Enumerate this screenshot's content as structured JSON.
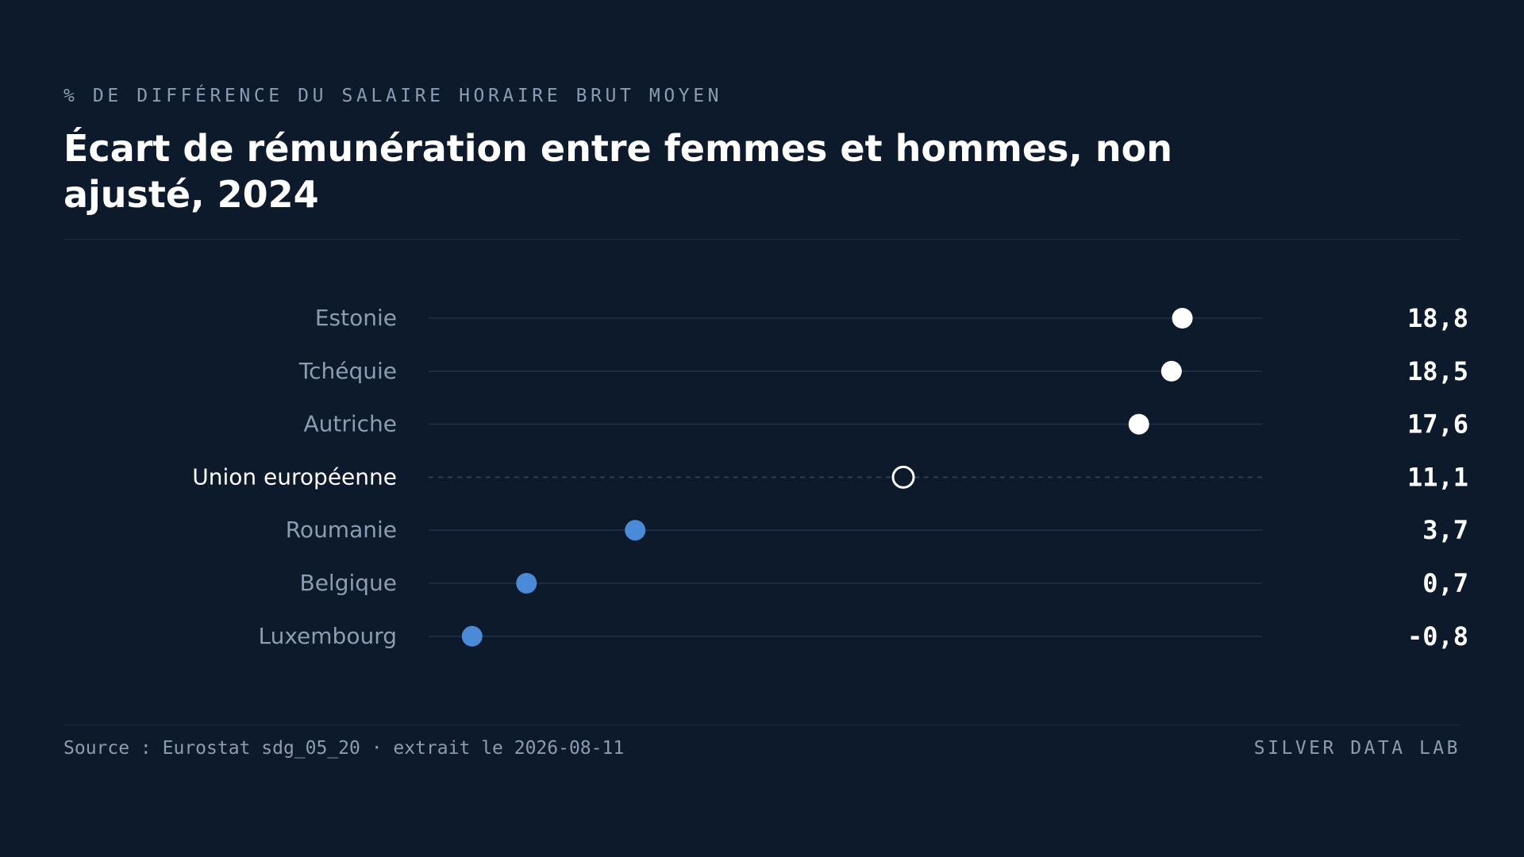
{
  "header": {
    "subtitle": "% DE DIFFÉRENCE DU SALAIRE HORAIRE BRUT MOYEN",
    "title": "Écart de rémunération entre femmes et hommes, non ajusté, 2024"
  },
  "footer": {
    "source": "Source : Eurostat sdg_05_20 · extrait le 2026-08-11",
    "brand": "SILVER DATA LAB"
  },
  "colors": {
    "background": "#0d1a2b",
    "high": "#ffffff",
    "low": "#4a8ad6",
    "reference": "#ffffff",
    "track": "#1f3148",
    "label": "#8c9cb3",
    "value": "#ffffff"
  },
  "chart_data": {
    "type": "dot",
    "title": "Écart de rémunération entre femmes et hommes, non ajusté, 2024",
    "subtitle": "% DE DIFFÉRENCE DU SALAIRE HORAIRE BRUT MOYEN",
    "xlim": [
      -2.0,
      21.0
    ],
    "grid": false,
    "categories": [
      "Estonie",
      "Tchéquie",
      "Autriche",
      "Union européenne",
      "Roumanie",
      "Belgique",
      "Luxembourg"
    ],
    "values": [
      18.8,
      18.5,
      17.6,
      11.1,
      3.7,
      0.7,
      -0.8
    ],
    "value_labels": [
      "18,8",
      "18,5",
      "17,6",
      "11,1",
      "3,7",
      "0,7",
      "-0,8"
    ],
    "reference_category": "Union européenne",
    "groups": [
      "high",
      "high",
      "high",
      "reference",
      "low",
      "low",
      "low"
    ]
  }
}
